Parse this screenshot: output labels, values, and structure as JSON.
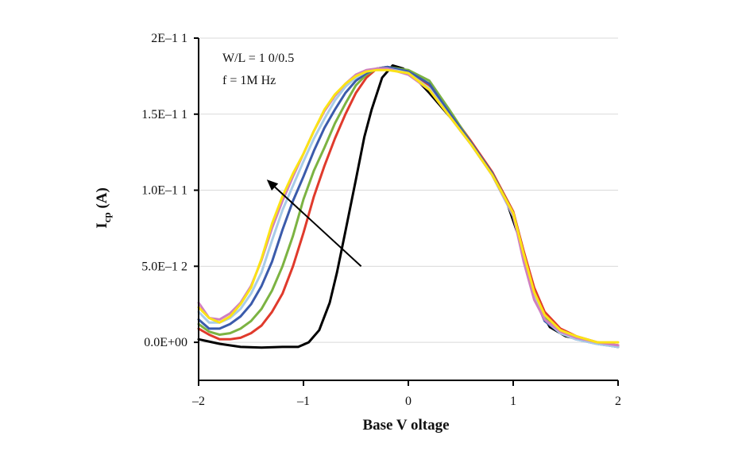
{
  "chart_data": {
    "type": "line",
    "title": "",
    "xlabel": "Base V oltage",
    "ylabel_main": "I",
    "ylabel_sub": "cp",
    "ylabel_unit": " (A)",
    "xlim": [
      -2,
      2
    ],
    "ylim": [
      -2.5e-12,
      2e-11
    ],
    "x_ticks": [
      -2,
      -1,
      0,
      1,
      2
    ],
    "x_tick_labels": [
      "–2",
      "–1",
      "0",
      "1",
      "2"
    ],
    "y_ticks": [
      0,
      5e-12,
      1e-11,
      1.5e-11,
      2e-11
    ],
    "y_tick_labels": [
      "0.0E+00",
      "5.0E–1 2",
      "1.0E–1 1",
      "1.5E–1 1",
      "2E–1 1"
    ],
    "grid": "horizontal",
    "annotations": [
      "W/L = 1 0/0.5",
      "f = 1M Hz"
    ],
    "arrow": {
      "from": [
        -0.45,
        5e-12
      ],
      "to": [
        -1.35,
        1.07e-11
      ]
    },
    "series": [
      {
        "color": "#000000",
        "points": [
          [
            -2,
            2e-13
          ],
          [
            -1.8,
            -1e-13
          ],
          [
            -1.6,
            -3e-13
          ],
          [
            -1.4,
            -3.5e-13
          ],
          [
            -1.2,
            -3e-13
          ],
          [
            -1.05,
            -3e-13
          ],
          [
            -0.95,
            0.0
          ],
          [
            -0.85,
            8e-13
          ],
          [
            -0.75,
            2.6e-12
          ],
          [
            -0.68,
            4.6e-12
          ],
          [
            -0.6,
            7.3e-12
          ],
          [
            -0.5,
            1.07e-11
          ],
          [
            -0.42,
            1.35e-11
          ],
          [
            -0.35,
            1.53e-11
          ],
          [
            -0.25,
            1.74e-11
          ],
          [
            -0.15,
            1.82e-11
          ],
          [
            -0.05,
            1.8e-11
          ],
          [
            0.05,
            1.75e-11
          ],
          [
            0.2,
            1.64e-11
          ],
          [
            0.4,
            1.48e-11
          ],
          [
            0.6,
            1.3e-11
          ],
          [
            0.8,
            1.1e-11
          ],
          [
            0.95,
            9e-12
          ],
          [
            1.05,
            7e-12
          ],
          [
            1.15,
            4.5e-12
          ],
          [
            1.25,
            2.2e-12
          ],
          [
            1.35,
            1e-12
          ],
          [
            1.5,
            4e-13
          ],
          [
            1.7,
            1e-13
          ],
          [
            2,
            -3e-13
          ]
        ]
      },
      {
        "color": "#e03a2c",
        "points": [
          [
            -2,
            9e-13
          ],
          [
            -1.9,
            5e-13
          ],
          [
            -1.8,
            2e-13
          ],
          [
            -1.7,
            2e-13
          ],
          [
            -1.6,
            3e-13
          ],
          [
            -1.5,
            6e-13
          ],
          [
            -1.4,
            1.1e-12
          ],
          [
            -1.3,
            2e-12
          ],
          [
            -1.2,
            3.2e-12
          ],
          [
            -1.1,
            5e-12
          ],
          [
            -1,
            7.2e-12
          ],
          [
            -0.9,
            9.6e-12
          ],
          [
            -0.8,
            1.16e-11
          ],
          [
            -0.7,
            1.34e-11
          ],
          [
            -0.6,
            1.5e-11
          ],
          [
            -0.5,
            1.64e-11
          ],
          [
            -0.4,
            1.74e-11
          ],
          [
            -0.3,
            1.8e-11
          ],
          [
            -0.2,
            1.81e-11
          ],
          [
            0,
            1.78e-11
          ],
          [
            0.2,
            1.69e-11
          ],
          [
            0.4,
            1.51e-11
          ],
          [
            0.6,
            1.32e-11
          ],
          [
            0.8,
            1.12e-11
          ],
          [
            1,
            8.6e-12
          ],
          [
            1.1,
            6e-12
          ],
          [
            1.2,
            3.6e-12
          ],
          [
            1.3,
            2e-12
          ],
          [
            1.45,
            9e-13
          ],
          [
            1.6,
            4e-13
          ],
          [
            1.8,
            0.0
          ],
          [
            2,
            -2e-13
          ]
        ]
      },
      {
        "color": "#7cb342",
        "points": [
          [
            -2,
            1.2e-12
          ],
          [
            -1.9,
            7e-13
          ],
          [
            -1.8,
            5e-13
          ],
          [
            -1.7,
            6e-13
          ],
          [
            -1.6,
            9e-13
          ],
          [
            -1.5,
            1.4e-12
          ],
          [
            -1.4,
            2.2e-12
          ],
          [
            -1.3,
            3.4e-12
          ],
          [
            -1.2,
            5e-12
          ],
          [
            -1.1,
            7e-12
          ],
          [
            -1,
            9.4e-12
          ],
          [
            -0.9,
            1.13e-11
          ],
          [
            -0.8,
            1.28e-11
          ],
          [
            -0.7,
            1.44e-11
          ],
          [
            -0.6,
            1.57e-11
          ],
          [
            -0.5,
            1.69e-11
          ],
          [
            -0.4,
            1.76e-11
          ],
          [
            -0.3,
            1.8e-11
          ],
          [
            -0.2,
            1.81e-11
          ],
          [
            0,
            1.79e-11
          ],
          [
            0.2,
            1.72e-11
          ],
          [
            0.4,
            1.52e-11
          ],
          [
            0.6,
            1.31e-11
          ],
          [
            0.8,
            1.11e-11
          ],
          [
            1,
            8.5e-12
          ],
          [
            1.1,
            5.8e-12
          ],
          [
            1.2,
            3.2e-12
          ],
          [
            1.3,
            1.6e-12
          ],
          [
            1.45,
            7e-13
          ],
          [
            1.6,
            3e-13
          ],
          [
            1.8,
            0.0
          ],
          [
            2,
            -3e-13
          ]
        ]
      },
      {
        "color": "#3b5bab",
        "points": [
          [
            -2,
            1.5e-12
          ],
          [
            -1.9,
            9e-13
          ],
          [
            -1.8,
            9e-13
          ],
          [
            -1.7,
            1.2e-12
          ],
          [
            -1.6,
            1.7e-12
          ],
          [
            -1.5,
            2.5e-12
          ],
          [
            -1.4,
            3.7e-12
          ],
          [
            -1.3,
            5.3e-12
          ],
          [
            -1.2,
            7.4e-12
          ],
          [
            -1.1,
            9.3e-12
          ],
          [
            -1,
            1.09e-11
          ],
          [
            -0.9,
            1.26e-11
          ],
          [
            -0.8,
            1.41e-11
          ],
          [
            -0.7,
            1.53e-11
          ],
          [
            -0.6,
            1.64e-11
          ],
          [
            -0.5,
            1.72e-11
          ],
          [
            -0.4,
            1.77e-11
          ],
          [
            -0.3,
            1.8e-11
          ],
          [
            -0.2,
            1.81e-11
          ],
          [
            0,
            1.78e-11
          ],
          [
            0.2,
            1.7e-11
          ],
          [
            0.4,
            1.5e-11
          ],
          [
            0.6,
            1.31e-11
          ],
          [
            0.8,
            1.11e-11
          ],
          [
            1,
            8.4e-12
          ],
          [
            1.1,
            5.6e-12
          ],
          [
            1.2,
            3e-12
          ],
          [
            1.3,
            1.4e-12
          ],
          [
            1.45,
            6e-13
          ],
          [
            1.6,
            2e-13
          ],
          [
            1.8,
            -1e-13
          ],
          [
            2,
            -3e-13
          ]
        ]
      },
      {
        "color": "#a8cce8",
        "points": [
          [
            -2,
            2e-12
          ],
          [
            -1.9,
            1.3e-12
          ],
          [
            -1.8,
            1.3e-12
          ],
          [
            -1.7,
            1.6e-12
          ],
          [
            -1.6,
            2.2e-12
          ],
          [
            -1.5,
            3.2e-12
          ],
          [
            -1.4,
            4.6e-12
          ],
          [
            -1.3,
            6.7e-12
          ],
          [
            -1.2,
            8.7e-12
          ],
          [
            -1.1,
            1.03e-11
          ],
          [
            -1,
            1.19e-11
          ],
          [
            -0.9,
            1.34e-11
          ],
          [
            -0.8,
            1.47e-11
          ],
          [
            -0.7,
            1.59e-11
          ],
          [
            -0.6,
            1.68e-11
          ],
          [
            -0.5,
            1.74e-11
          ],
          [
            -0.4,
            1.78e-11
          ],
          [
            -0.3,
            1.8e-11
          ],
          [
            -0.2,
            1.8e-11
          ],
          [
            0,
            1.77e-11
          ],
          [
            0.2,
            1.67e-11
          ],
          [
            0.4,
            1.48e-11
          ],
          [
            0.6,
            1.3e-11
          ],
          [
            0.8,
            1.1e-11
          ],
          [
            1,
            8.3e-12
          ],
          [
            1.1,
            5.6e-12
          ],
          [
            1.2,
            3e-12
          ],
          [
            1.3,
            1.5e-12
          ],
          [
            1.45,
            6e-13
          ],
          [
            1.6,
            2e-13
          ],
          [
            1.8,
            -1e-13
          ],
          [
            2,
            -3e-13
          ]
        ]
      },
      {
        "color": "#cf7fc0",
        "points": [
          [
            -2,
            2.6e-12
          ],
          [
            -1.9,
            1.6e-12
          ],
          [
            -1.8,
            1.5e-12
          ],
          [
            -1.7,
            1.9e-12
          ],
          [
            -1.6,
            2.6e-12
          ],
          [
            -1.5,
            3.7e-12
          ],
          [
            -1.4,
            5.4e-12
          ],
          [
            -1.3,
            7.5e-12
          ],
          [
            -1.2,
            9.3e-12
          ],
          [
            -1.1,
            1.09e-11
          ],
          [
            -1,
            1.24e-11
          ],
          [
            -0.9,
            1.39e-11
          ],
          [
            -0.8,
            1.52e-11
          ],
          [
            -0.7,
            1.62e-11
          ],
          [
            -0.6,
            1.7e-11
          ],
          [
            -0.5,
            1.76e-11
          ],
          [
            -0.4,
            1.79e-11
          ],
          [
            -0.3,
            1.8e-11
          ],
          [
            -0.2,
            1.8e-11
          ],
          [
            0,
            1.76e-11
          ],
          [
            0.2,
            1.66e-11
          ],
          [
            0.4,
            1.48e-11
          ],
          [
            0.6,
            1.3e-11
          ],
          [
            0.8,
            1.1e-11
          ],
          [
            1,
            8.4e-12
          ],
          [
            1.1,
            5.3e-12
          ],
          [
            1.2,
            2.8e-12
          ],
          [
            1.3,
            1.5e-12
          ],
          [
            1.45,
            7e-13
          ],
          [
            1.6,
            3e-13
          ],
          [
            1.8,
            0.0
          ],
          [
            2,
            -2e-13
          ]
        ]
      },
      {
        "color": "#fbe316",
        "points": [
          [
            -2,
            2.3e-12
          ],
          [
            -1.9,
            1.6e-12
          ],
          [
            -1.8,
            1.3e-12
          ],
          [
            -1.7,
            1.7e-12
          ],
          [
            -1.6,
            2.5e-12
          ],
          [
            -1.5,
            3.6e-12
          ],
          [
            -1.4,
            5.5e-12
          ],
          [
            -1.3,
            7.8e-12
          ],
          [
            -1.2,
            9.6e-12
          ],
          [
            -1.1,
            1.11e-11
          ],
          [
            -1,
            1.24e-11
          ],
          [
            -0.9,
            1.39e-11
          ],
          [
            -0.8,
            1.53e-11
          ],
          [
            -0.7,
            1.63e-11
          ],
          [
            -0.6,
            1.7e-11
          ],
          [
            -0.5,
            1.75e-11
          ],
          [
            -0.4,
            1.78e-11
          ],
          [
            -0.3,
            1.79e-11
          ],
          [
            -0.2,
            1.79e-11
          ],
          [
            0,
            1.77e-11
          ],
          [
            0.2,
            1.66e-11
          ],
          [
            0.4,
            1.48e-11
          ],
          [
            0.6,
            1.3e-11
          ],
          [
            0.8,
            1.1e-11
          ],
          [
            1,
            8.5e-12
          ],
          [
            1.1,
            5.8e-12
          ],
          [
            1.2,
            3.3e-12
          ],
          [
            1.3,
            1.8e-12
          ],
          [
            1.45,
            8e-13
          ],
          [
            1.6,
            4e-13
          ],
          [
            1.8,
            0.0
          ],
          [
            2,
            0.0
          ]
        ]
      }
    ]
  }
}
